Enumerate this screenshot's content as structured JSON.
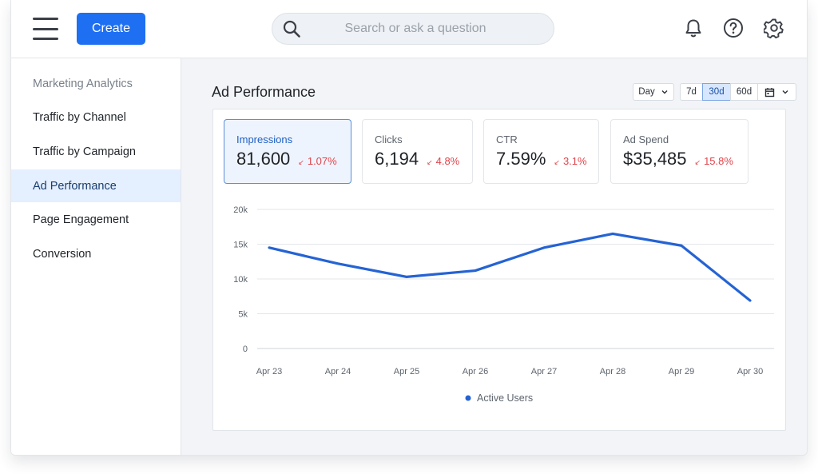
{
  "header": {
    "create_label": "Create",
    "search_placeholder": "Search or ask a question"
  },
  "sidebar": {
    "section_title": "Marketing Analytics",
    "items": [
      {
        "label": "Traffic by Channel"
      },
      {
        "label": "Traffic by Campaign"
      },
      {
        "label": "Ad Performance",
        "active": true
      },
      {
        "label": "Page Engagement"
      },
      {
        "label": "Conversion"
      }
    ]
  },
  "main": {
    "title": "Ad Performance",
    "granularity": "Day",
    "ranges": [
      "7d",
      "30d",
      "60d"
    ],
    "active_range": "30d"
  },
  "metrics": [
    {
      "label": "Impressions",
      "value": "81,600",
      "delta": "1.07%",
      "active": true
    },
    {
      "label": "Clicks",
      "value": "6,194",
      "delta": "4.8%"
    },
    {
      "label": "CTR",
      "value": "7.59%",
      "delta": "3.1%"
    },
    {
      "label": "Ad Spend",
      "value": "$35,485",
      "delta": "15.8%"
    }
  ],
  "colors": {
    "accent": "#1f6ff2",
    "line": "#2563d4",
    "negative": "#e0434a"
  },
  "chart_data": {
    "type": "line",
    "categories": [
      "Apr 23",
      "Apr 24",
      "Apr 25",
      "Apr 26",
      "Apr 27",
      "Apr 28",
      "Apr 29",
      "Apr 30"
    ],
    "series": [
      {
        "name": "Active Users",
        "values": [
          14500,
          12200,
          10300,
          11200,
          14500,
          16500,
          14800,
          6900
        ]
      }
    ],
    "y_ticks": [
      "0",
      "5k",
      "10k",
      "15k",
      "20k"
    ],
    "ylim": [
      0,
      20000
    ],
    "grid": true,
    "legend": "bottom-center"
  }
}
